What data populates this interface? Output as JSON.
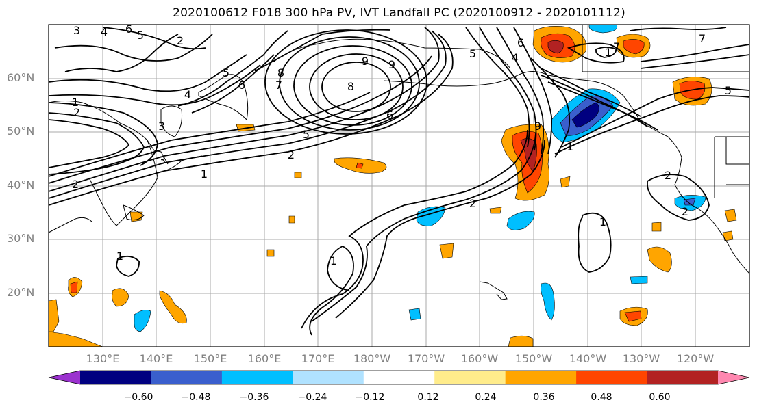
{
  "title": "2020100612 F018 300 hPa PV, IVT Landfall PC (2020100912 - 2020101112)",
  "map": {
    "lat_labels": [
      "60°N",
      "50°N",
      "40°N",
      "30°N",
      "20°N"
    ],
    "lon_labels": [
      "130°E",
      "140°E",
      "150°E",
      "160°E",
      "170°E",
      "180°W",
      "170°W",
      "160°W",
      "150°W",
      "140°W",
      "130°W",
      "120°W"
    ],
    "contour_labels": [
      "3",
      "4",
      "6",
      "5",
      "2",
      "5",
      "6",
      "7",
      "8",
      "9",
      "1",
      "2",
      "5",
      "4",
      "8",
      "6",
      "9",
      "1",
      "2",
      "2",
      "1",
      "3",
      "2",
      "3",
      "4",
      "1",
      "5",
      "6",
      "1",
      "2",
      "1",
      "1",
      "2",
      "5",
      "7",
      "7",
      "9"
    ]
  },
  "colorbar": {
    "colors": [
      "#9b32cf",
      "#000080",
      "#3a5fcd",
      "#00bfff",
      "#b0e2ff",
      "#ffffff",
      "#ffec8b",
      "#ffa500",
      "#ff4500",
      "#b22222",
      "#ff88b0"
    ],
    "tick_labels": [
      "−0.60",
      "−0.48",
      "−0.36",
      "−0.24",
      "−0.12",
      "0.12",
      "0.24",
      "0.36",
      "0.48",
      "0.60"
    ]
  }
}
